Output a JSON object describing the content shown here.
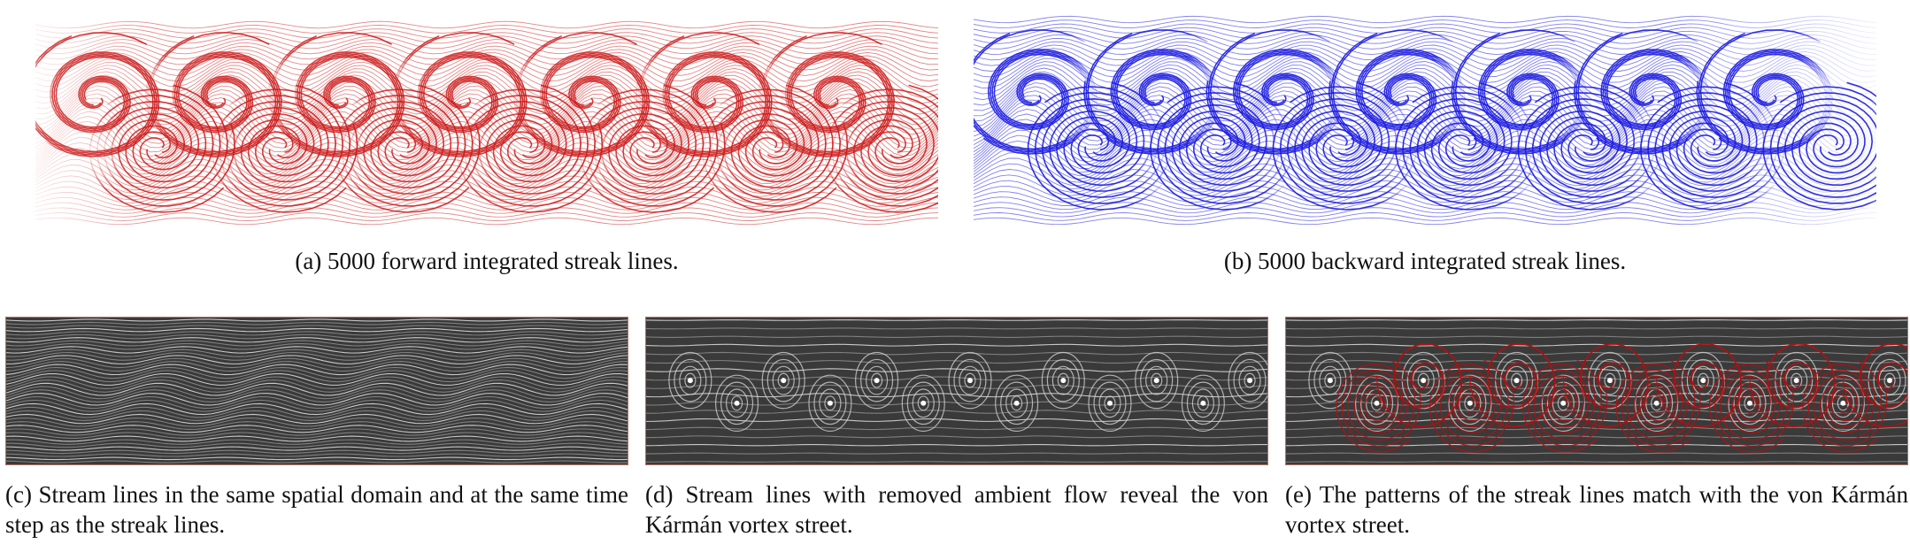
{
  "captions": {
    "a": "(a) 5000 forward integrated streak lines.",
    "b": "(b) 5000 backward integrated streak lines.",
    "c": "(c) Stream lines in the same spatial domain and at the same time step as the streak lines.",
    "d": "(d) Stream lines with removed ambient flow reveal the von Kármán vortex street.",
    "e": "(e) The patterns of the streak lines match with the von Kármán vortex street."
  },
  "colors": {
    "forward_streak": "#cc1a1a",
    "backward_streak": "#1a1ae0",
    "streamline_background": "#3a3a3a",
    "streamline_line": "#d8d8d8",
    "overlay_streak": "#b01010",
    "panel_border": "#b87060"
  }
}
